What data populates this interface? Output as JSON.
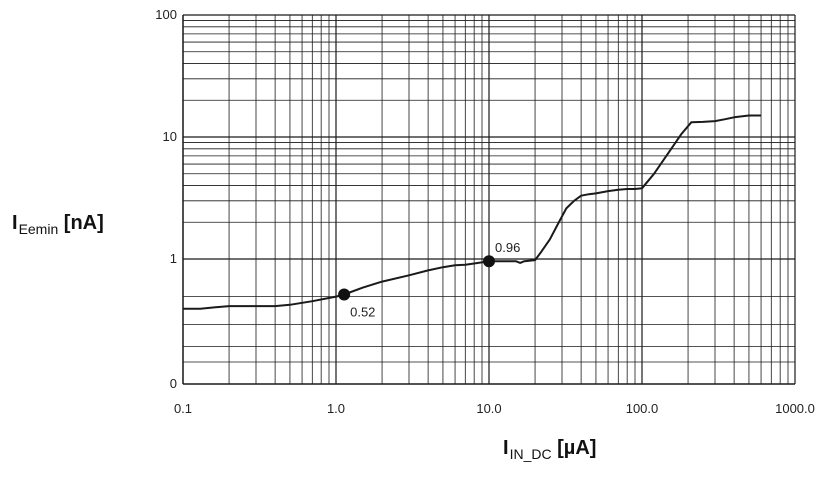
{
  "chart_data": {
    "type": "line",
    "title": "",
    "xlabel": {
      "main": "I",
      "sub": "IN_DC",
      "unit": " [µA]"
    },
    "ylabel": {
      "main": "I",
      "sub": "Eemin",
      "unit": " [nA]"
    },
    "x_scale": "log",
    "y_scale": "log",
    "xlim": [
      0.1,
      1000
    ],
    "ylim_labels": [
      "0",
      "1",
      "10",
      "100"
    ],
    "x_tick_labels": [
      "0.1",
      "1.0",
      "10.0",
      "100.0",
      "1000.0"
    ],
    "grid": true,
    "series": [
      {
        "x": [
          0.1,
          0.13,
          0.16,
          0.2,
          0.25,
          0.3,
          0.4,
          0.5,
          0.7,
          1.0,
          1.13,
          1.5,
          2.0,
          3.0,
          4.0,
          5.0,
          6.0,
          7.0,
          8.0,
          10.0,
          12.0,
          15.0,
          16.0,
          17.0,
          20.0,
          22.0,
          25.0,
          28.0,
          32.0,
          36.0,
          40.0,
          45.0,
          50.0,
          60.0,
          70.0,
          80.0,
          90.0,
          100.0,
          120.0,
          150.0,
          180.0,
          210.0,
          250.0,
          300.0,
          350.0,
          400.0,
          500.0,
          600.0
        ],
        "y": [
          0.4,
          0.4,
          0.41,
          0.42,
          0.42,
          0.42,
          0.42,
          0.43,
          0.46,
          0.5,
          0.52,
          0.59,
          0.66,
          0.74,
          0.81,
          0.86,
          0.89,
          0.9,
          0.92,
          0.96,
          0.96,
          0.96,
          0.93,
          0.96,
          0.98,
          1.15,
          1.45,
          1.9,
          2.6,
          3.0,
          3.3,
          3.4,
          3.45,
          3.6,
          3.7,
          3.75,
          3.75,
          3.8,
          5.0,
          7.5,
          10.5,
          13.2,
          13.3,
          13.5,
          14.0,
          14.5,
          15.0,
          15.0
        ]
      }
    ],
    "annotations": [
      {
        "x": 1.13,
        "y": 0.52,
        "label": "0.52"
      },
      {
        "x": 10.0,
        "y": 0.96,
        "label": "0.96"
      }
    ],
    "line_color": "#1a1a1a",
    "grid_color": "#1a1a1a"
  }
}
